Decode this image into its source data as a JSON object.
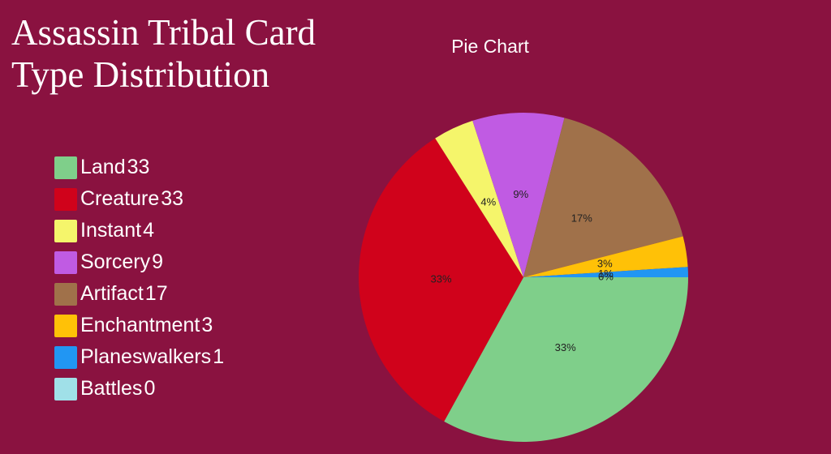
{
  "chart_data": {
    "type": "pie",
    "title": "Assassin Tribal Card Type Distribution",
    "subtitle": "Pie Chart",
    "categories": [
      "Land",
      "Creature",
      "Instant",
      "Sorcery",
      "Artifact",
      "Enchantment",
      "Planeswalkers",
      "Battles"
    ],
    "values": [
      33,
      33,
      4,
      9,
      17,
      3,
      1,
      0
    ],
    "value_labels": [
      "33%",
      "33%",
      "4%",
      "9%",
      "17%",
      "3%",
      "1%",
      "0%"
    ],
    "colors": [
      "#7fcf8a",
      "#d0021b",
      "#f5f56b",
      "#c05be3",
      "#a0714a",
      "#ffc107",
      "#2196f3",
      "#a0e0e8"
    ],
    "legend": "left"
  }
}
